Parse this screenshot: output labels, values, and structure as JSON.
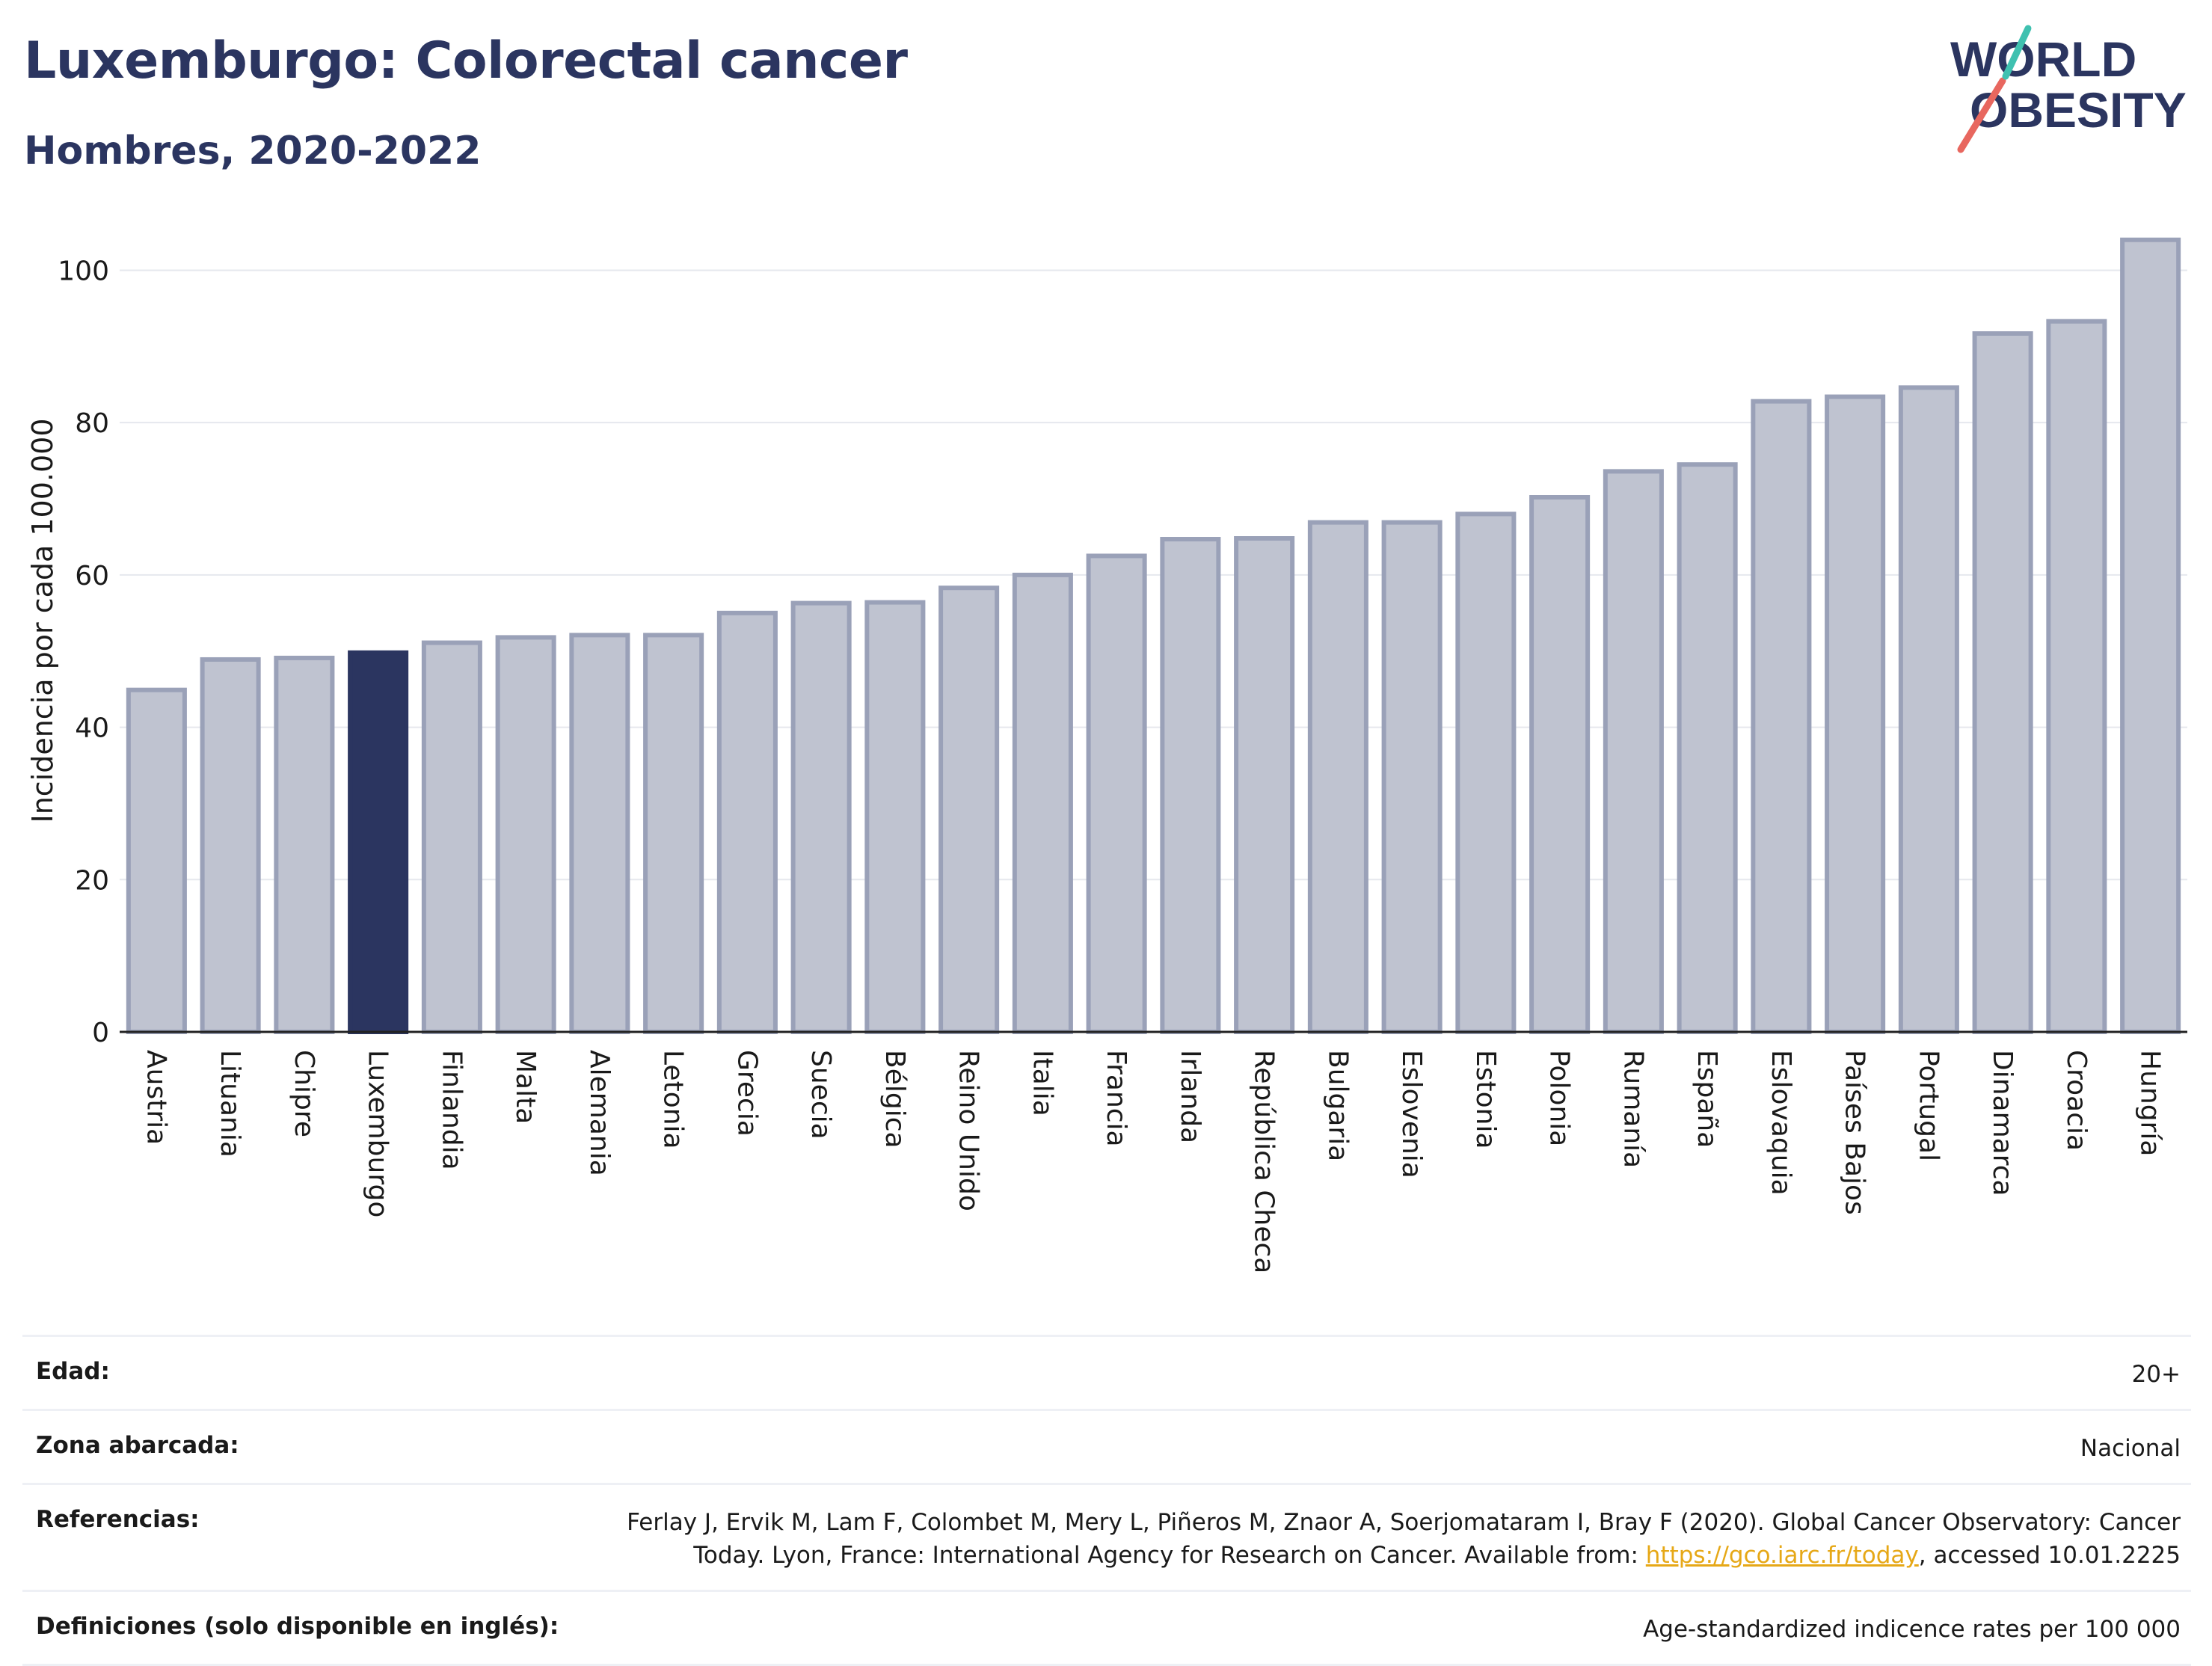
{
  "header": {
    "title": "Luxemburgo: Colorectal cancer",
    "subtitle": "Hombres, 2020-2022",
    "logo_text_line1": "WORLD",
    "logo_text_line2": "OBESITY"
  },
  "chart_data": {
    "type": "bar",
    "ylabel": "Incidencia por cada 100.000",
    "xlabel": "",
    "ylim": [
      0,
      108
    ],
    "yticks": [
      0,
      20,
      40,
      60,
      80,
      100
    ],
    "grid": true,
    "highlight": "Luxemburgo",
    "colors": {
      "bar": "#bfc3d0",
      "bar_edge": "#9aa1b8",
      "highlight": "#2b3560",
      "grid": "#e6e8ee"
    },
    "categories": [
      "Austria",
      "Lituania",
      "Chipre",
      "Luxemburgo",
      "Finlandia",
      "Malta",
      "Alemania",
      "Letonia",
      "Grecia",
      "Suecia",
      "Bélgica",
      "Reino Unido",
      "Italia",
      "Francia",
      "Irlanda",
      "República Checa",
      "Bulgaria",
      "Eslovenia",
      "Estonia",
      "Polonia",
      "Rumanía",
      "España",
      "Eslovaquia",
      "Países Bajos",
      "Portugal",
      "Dinamarca",
      "Croacia",
      "Hungría"
    ],
    "values": [
      44.9,
      48.9,
      49.1,
      49.8,
      51.1,
      51.8,
      52.1,
      52.1,
      55.0,
      56.3,
      56.4,
      58.3,
      60.0,
      62.5,
      64.7,
      64.8,
      66.9,
      66.9,
      68.0,
      70.2,
      73.6,
      74.5,
      82.8,
      83.4,
      84.6,
      91.7,
      93.3,
      104.0
    ]
  },
  "info": {
    "age_label": "Edad:",
    "age_value": "20+",
    "zone_label": "Zona abarcada:",
    "zone_value": "Nacional",
    "ref_label": "Referencias:",
    "ref_text_1": "Ferlay J, Ervik M, Lam F, Colombet M, Mery L, Piñeros M, Znaor A, Soerjomataram I, Bray F (2020). Global Cancer Observatory: Cancer Today. Lyon, France: International Agency for Research on Cancer. Available from: ",
    "ref_link": "https://gco.iarc.fr/today",
    "ref_text_2": ", accessed 10.01.2225",
    "def_label": "Definiciones (solo disponible en inglés):",
    "def_value": "Age-standardized indicence rates per 100 000"
  }
}
